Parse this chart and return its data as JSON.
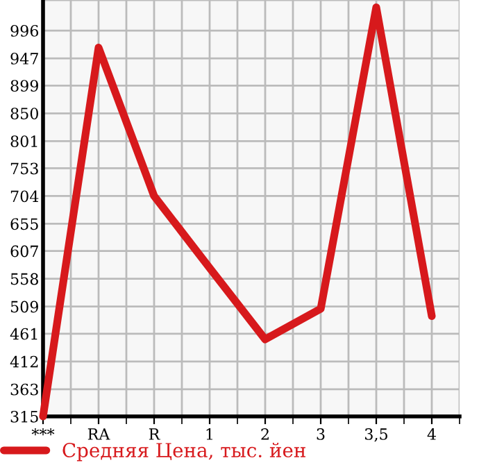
{
  "chart_data": {
    "type": "line",
    "categories": [
      "***",
      "RA",
      "R",
      "1",
      "2",
      "3",
      "3,5",
      "4"
    ],
    "series": [
      {
        "name": "Средняя Цена, тыс. йен",
        "color": "#d7191c",
        "values": [
          315,
          966,
          704,
          577,
          451,
          505,
          1037,
          492
        ]
      }
    ],
    "ylim": [
      315,
      1050
    ],
    "yticks": [
      315,
      363,
      412,
      461,
      509,
      558,
      607,
      655,
      704,
      753,
      801,
      850,
      899,
      947,
      996
    ],
    "grid": true,
    "legend": "bottom",
    "marker": "none",
    "line_style": "solid"
  }
}
